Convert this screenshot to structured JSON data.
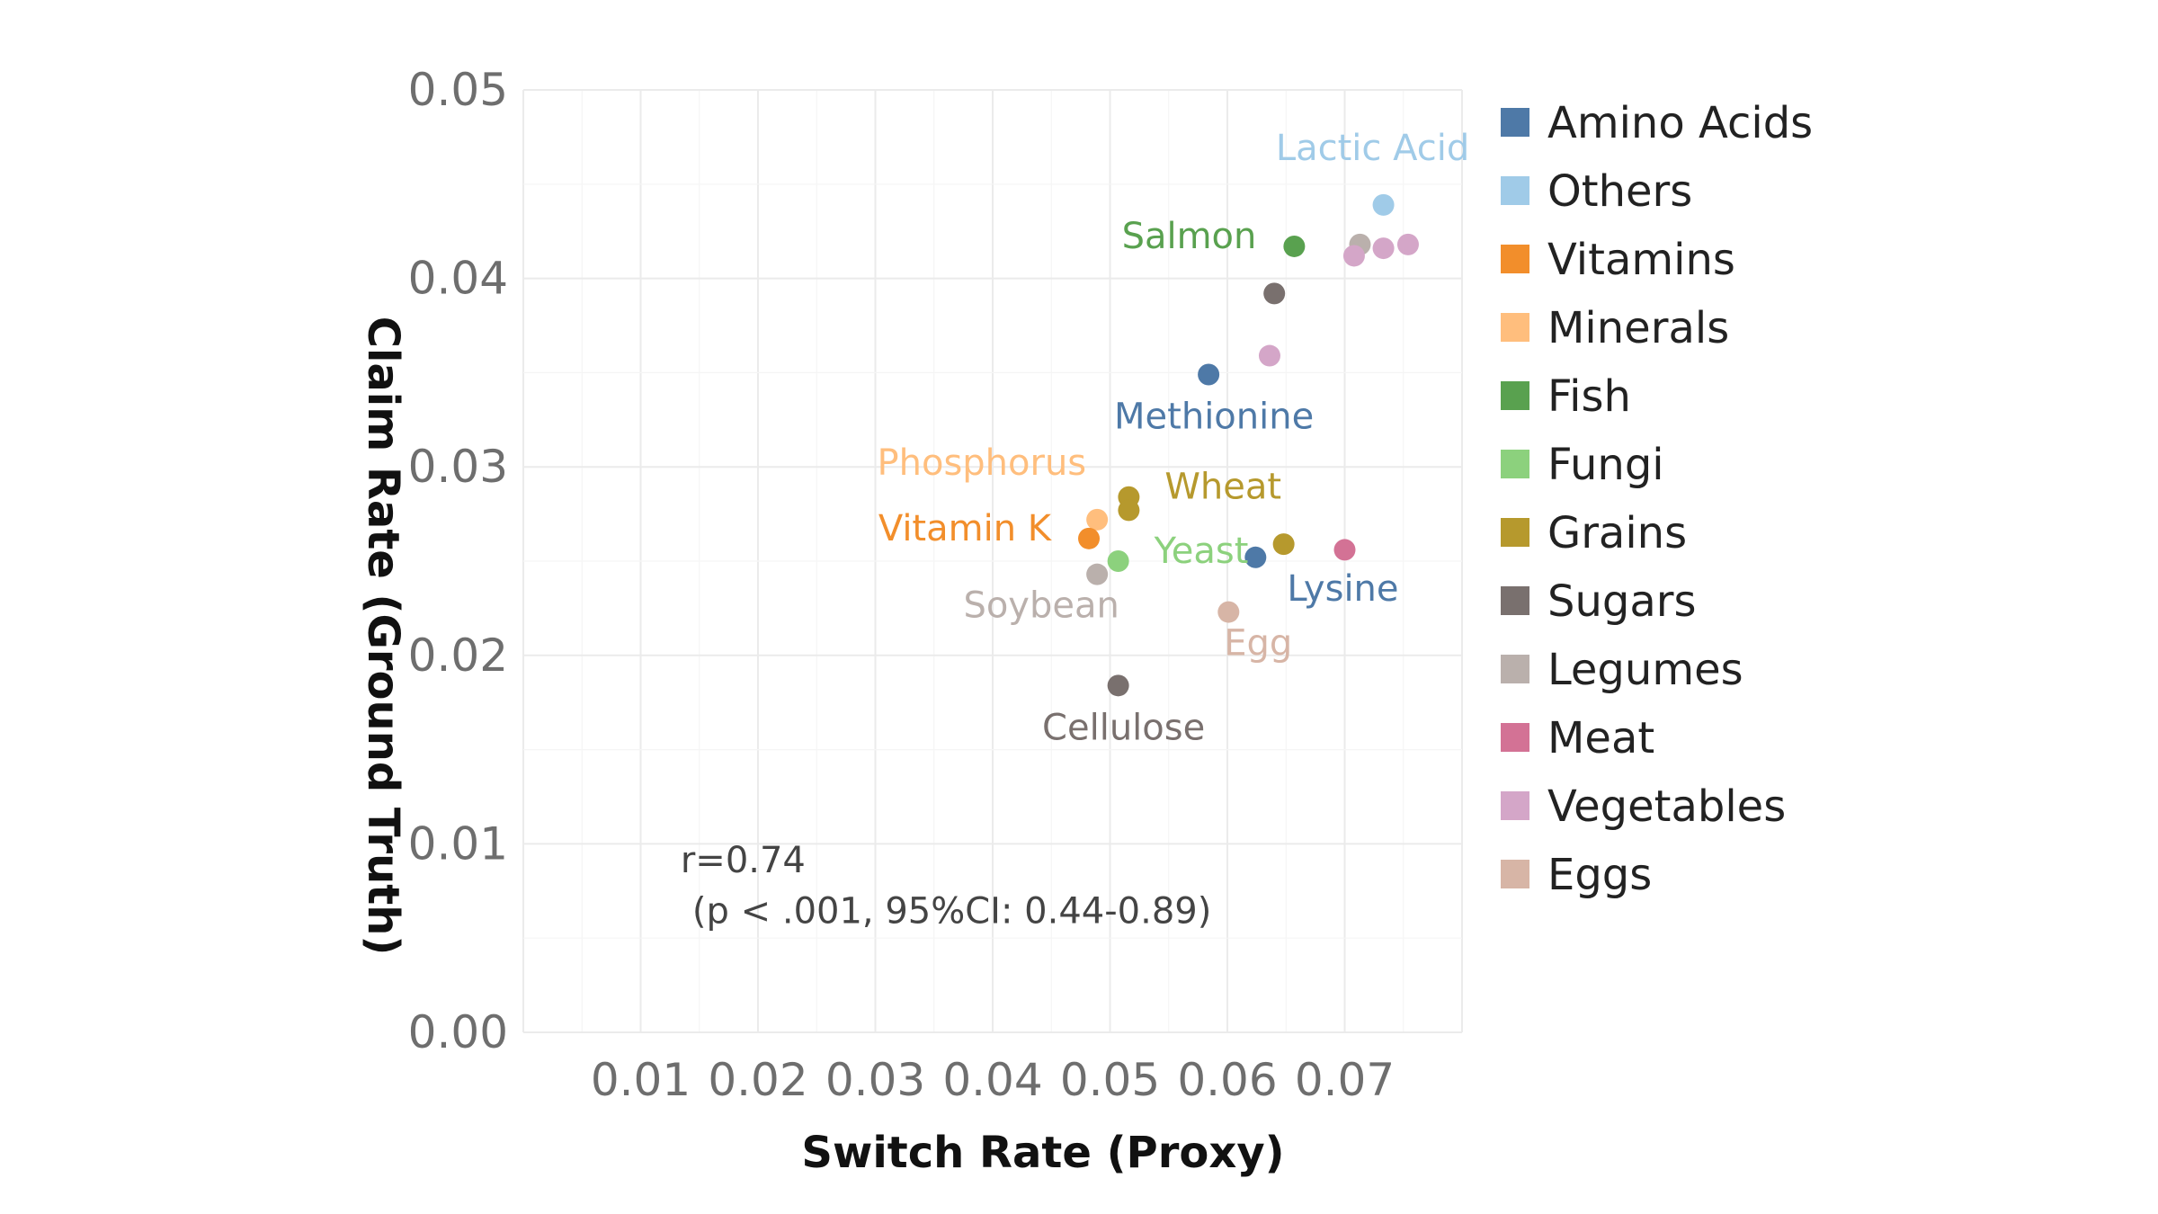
{
  "chart_data": {
    "type": "scatter",
    "title": "",
    "xlabel": "Switch Rate (Proxy)",
    "ylabel": "Claim Rate (Ground Truth)",
    "xlim": [
      0,
      0.08
    ],
    "ylim": [
      0,
      0.05
    ],
    "x_ticks": [
      "0.01",
      "0.02",
      "0.03",
      "0.04",
      "0.05",
      "0.06",
      "0.07"
    ],
    "y_ticks": [
      "0.00",
      "0.01",
      "0.02",
      "0.03",
      "0.04",
      "0.05"
    ],
    "grid": true,
    "legend_position": "right",
    "categories": [
      {
        "name": "Amino Acids",
        "color": "#4e79a7"
      },
      {
        "name": "Others",
        "color": "#a0cbe8"
      },
      {
        "name": "Vitamins",
        "color": "#f28e2b"
      },
      {
        "name": "Minerals",
        "color": "#ffbe7d"
      },
      {
        "name": "Fish",
        "color": "#59a14f"
      },
      {
        "name": "Fungi",
        "color": "#8cd17d"
      },
      {
        "name": "Grains",
        "color": "#b6992d"
      },
      {
        "name": "Sugars",
        "color": "#79706e"
      },
      {
        "name": "Legumes",
        "color": "#bab0ac"
      },
      {
        "name": "Meat",
        "color": "#d37295"
      },
      {
        "name": "Vegetables",
        "color": "#d4a6c8"
      },
      {
        "name": "Eggs",
        "color": "#d7b5a6"
      }
    ],
    "points": [
      {
        "x": 0.0733,
        "y": 0.0439,
        "category": "Others",
        "label": "Lactic Acid",
        "label_anchor": "top-left"
      },
      {
        "x": 0.0657,
        "y": 0.0417,
        "category": "Fish",
        "label": "Salmon",
        "label_anchor": "left"
      },
      {
        "x": 0.0713,
        "y": 0.0418,
        "category": "Legumes"
      },
      {
        "x": 0.0708,
        "y": 0.0412,
        "category": "Vegetables"
      },
      {
        "x": 0.0733,
        "y": 0.0416,
        "category": "Vegetables"
      },
      {
        "x": 0.0754,
        "y": 0.0418,
        "category": "Vegetables"
      },
      {
        "x": 0.064,
        "y": 0.0392,
        "category": "Sugars"
      },
      {
        "x": 0.0584,
        "y": 0.0349,
        "category": "Amino Acids",
        "label": "Methionine",
        "label_anchor": "below"
      },
      {
        "x": 0.0636,
        "y": 0.0359,
        "category": "Vegetables"
      },
      {
        "x": 0.0516,
        "y": 0.0284,
        "category": "Grains",
        "label": "Wheat",
        "label_anchor": "right"
      },
      {
        "x": 0.0516,
        "y": 0.0277,
        "category": "Grains"
      },
      {
        "x": 0.0489,
        "y": 0.0272,
        "category": "Minerals",
        "label": "Phosphorus",
        "label_anchor": "top-left"
      },
      {
        "x": 0.0482,
        "y": 0.0262,
        "category": "Vitamins",
        "label": "Vitamin K",
        "label_anchor": "left"
      },
      {
        "x": 0.0507,
        "y": 0.025,
        "category": "Fungi",
        "label": "Yeast",
        "label_anchor": "right"
      },
      {
        "x": 0.0489,
        "y": 0.0243,
        "category": "Legumes",
        "label": "Soybean",
        "label_anchor": "below-left"
      },
      {
        "x": 0.0624,
        "y": 0.0252,
        "category": "Amino Acids",
        "label": "Lysine",
        "label_anchor": "below-right"
      },
      {
        "x": 0.0648,
        "y": 0.0259,
        "category": "Grains"
      },
      {
        "x": 0.07,
        "y": 0.0256,
        "category": "Meat"
      },
      {
        "x": 0.0601,
        "y": 0.0223,
        "category": "Eggs",
        "label": "Egg",
        "label_anchor": "below-right"
      },
      {
        "x": 0.0507,
        "y": 0.0184,
        "category": "Sugars",
        "label": "Cellulose",
        "label_anchor": "below"
      }
    ],
    "annotations": [
      {
        "text": "r=0.74",
        "x": 0.0134,
        "y": 0.0085
      },
      {
        "text": "(p < .001, 95%CI: 0.44-0.89)",
        "x": 0.0144,
        "y": 0.0058
      }
    ]
  }
}
